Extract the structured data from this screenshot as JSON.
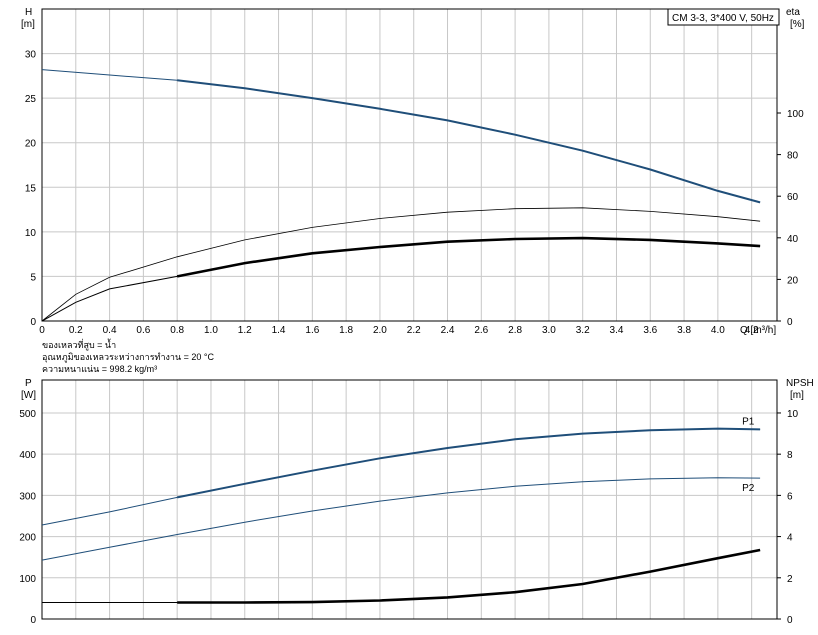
{
  "legend_box": "CM 3-3, 3*400 V, 50Hz",
  "colors": {
    "blue": "#1f4e79",
    "black": "#000000",
    "grid": "#c8c8c8"
  },
  "notes": [
    "ของเหลวที่สูบ = น้ำ",
    "อุณหภูมิของเหลวระหว่างการทำงาน = 20 °C",
    "ความหนาแน่น = 998.2 kg/m³"
  ],
  "chart_data": [
    {
      "type": "line",
      "x_label": "Q [m³/h]",
      "x_ticks": [
        "0",
        "0.2",
        "0.4",
        "0.6",
        "0.8",
        "1.0",
        "1.2",
        "1.4",
        "1.6",
        "1.8",
        "2.0",
        "2.2",
        "2.4",
        "2.6",
        "2.8",
        "3.0",
        "3.2",
        "3.4",
        "3.6",
        "3.8",
        "4.0",
        "4.2"
      ],
      "xlim": [
        0,
        4.35
      ],
      "y_left": {
        "label_top": "H",
        "label_unit": "[m]",
        "ticks": [
          "0",
          "5",
          "10",
          "15",
          "20",
          "25",
          "30"
        ],
        "lim": [
          0,
          35
        ]
      },
      "y_right": {
        "label_top": "eta",
        "label_unit": "[%]",
        "ticks": [
          "0",
          "20",
          "40",
          "60",
          "80",
          "100"
        ],
        "lim": [
          0,
          150
        ]
      },
      "grid": true,
      "series": [
        {
          "axis": "left",
          "color": "blue",
          "x": [
            0,
            0.4,
            0.8,
            1.2,
            1.6,
            2.0,
            2.4,
            2.8,
            3.2,
            3.6,
            4.0,
            4.25
          ],
          "y": [
            28.2,
            27.6,
            27.0,
            26.1,
            25.0,
            23.8,
            22.5,
            20.9,
            19.1,
            17.0,
            14.6,
            13.3
          ],
          "operating_from": 0.8
        },
        {
          "axis": "left",
          "color": "black",
          "x": [
            0,
            0.2,
            0.4,
            0.8,
            1.2,
            1.6,
            2.0,
            2.4,
            2.8,
            3.2,
            3.6,
            4.0,
            4.25
          ],
          "y": [
            0,
            2.1,
            3.6,
            5.0,
            6.5,
            7.6,
            8.3,
            8.9,
            9.2,
            9.3,
            9.1,
            8.7,
            8.4
          ],
          "operating_from": 0.8,
          "thick": true
        },
        {
          "axis": "left",
          "color": "black",
          "x": [
            0,
            0.2,
            0.4,
            0.8,
            1.2,
            1.6,
            2.0,
            2.4,
            2.8,
            3.2,
            3.6,
            4.0,
            4.25
          ],
          "y": [
            0,
            3.0,
            4.9,
            7.2,
            9.1,
            10.5,
            11.5,
            12.2,
            12.6,
            12.7,
            12.3,
            11.7,
            11.2
          ],
          "operating_from": 99,
          "thin": true
        }
      ]
    },
    {
      "type": "line",
      "x_ticks": [
        "0",
        "0.2",
        "0.4",
        "0.6",
        "0.8",
        "1.0",
        "1.2",
        "1.4",
        "1.6",
        "1.8",
        "2.0",
        "2.2",
        "2.4",
        "2.6",
        "2.8",
        "3.0",
        "3.2",
        "3.4",
        "3.6",
        "3.8",
        "4.0",
        "4.2"
      ],
      "xlim": [
        0,
        4.35
      ],
      "y_left": {
        "label_top": "P",
        "label_unit": "[W]",
        "ticks": [
          "0",
          "100",
          "200",
          "300",
          "400",
          "500"
        ],
        "lim": [
          0,
          580
        ]
      },
      "y_right": {
        "label_top": "NPSH",
        "label_unit": "[m]",
        "ticks": [
          "0",
          "2",
          "4",
          "6",
          "8",
          "10"
        ],
        "lim": [
          0,
          11.6
        ]
      },
      "grid": true,
      "series": [
        {
          "name": "P1",
          "axis": "left",
          "color": "blue",
          "x": [
            0,
            0.4,
            0.8,
            1.2,
            1.6,
            2.0,
            2.4,
            2.8,
            3.2,
            3.6,
            4.0,
            4.25
          ],
          "y": [
            228,
            260,
            295,
            328,
            360,
            390,
            415,
            436,
            450,
            458,
            462,
            460
          ],
          "operating_from": 0.8
        },
        {
          "name": "P2",
          "axis": "left",
          "color": "blue",
          "x": [
            0,
            0.4,
            0.8,
            1.2,
            1.6,
            2.0,
            2.4,
            2.8,
            3.2,
            3.6,
            4.0,
            4.25
          ],
          "y": [
            143,
            174,
            205,
            235,
            262,
            286,
            306,
            322,
            333,
            340,
            343,
            342
          ],
          "operating_from": 99
        },
        {
          "axis": "right",
          "color": "black",
          "x": [
            0,
            0.8,
            1.2,
            1.6,
            2.0,
            2.4,
            2.8,
            3.2,
            3.6,
            4.0,
            4.25
          ],
          "y": [
            0.8,
            0.8,
            0.8,
            0.82,
            0.9,
            1.05,
            1.3,
            1.7,
            2.3,
            2.95,
            3.35
          ],
          "operating_from": 0.8,
          "thick": true
        }
      ]
    }
  ]
}
